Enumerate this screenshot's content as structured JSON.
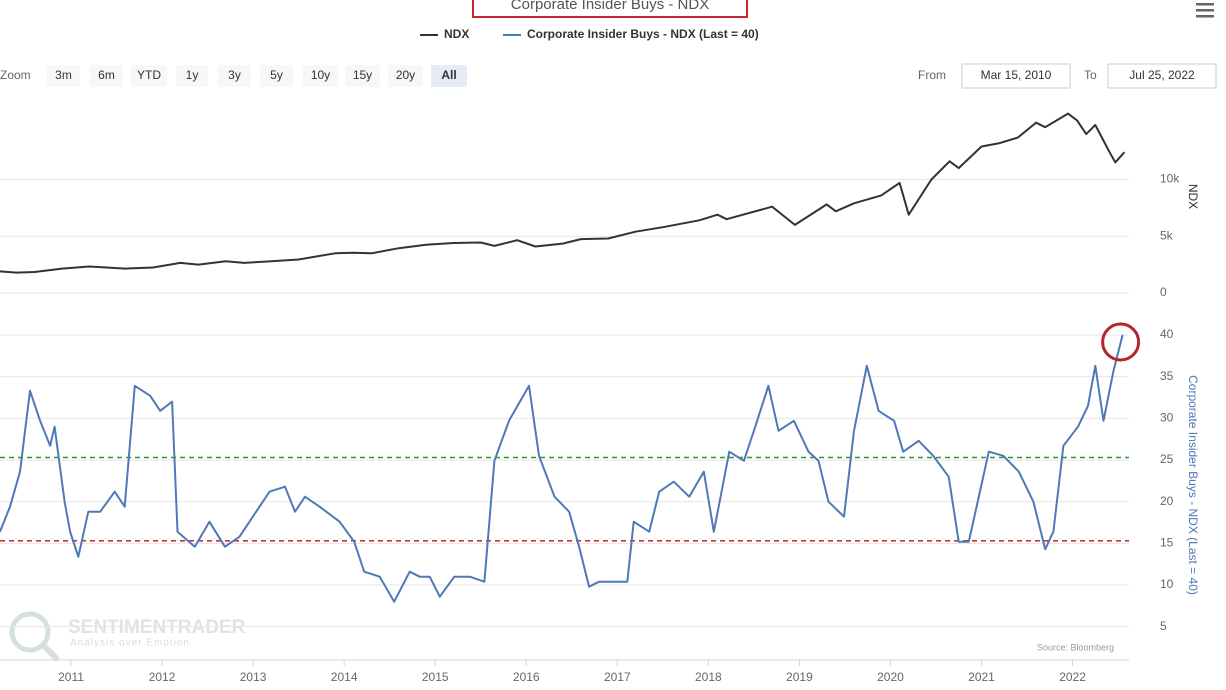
{
  "chart_data": [
    {
      "type": "line",
      "title": "Corporate Insider Buys - NDX",
      "series": [
        {
          "name": "NDX",
          "color": "#333333",
          "x": [
            2010.22,
            2010.4,
            2010.6,
            2010.9,
            2011.2,
            2011.6,
            2011.9,
            2012.2,
            2012.4,
            2012.7,
            2012.9,
            2013.2,
            2013.5,
            2013.9,
            2014.1,
            2014.3,
            2014.6,
            2014.9,
            2015.2,
            2015.5,
            2015.65,
            2015.9,
            2016.1,
            2016.4,
            2016.6,
            2016.9,
            2017.2,
            2017.5,
            2017.9,
            2018.1,
            2018.2,
            2018.7,
            2018.95,
            2019.3,
            2019.4,
            2019.6,
            2019.9,
            2020.1,
            2020.2,
            2020.45,
            2020.65,
            2020.75,
            2021.0,
            2021.2,
            2021.4,
            2021.6,
            2021.7,
            2021.95,
            2022.05,
            2022.15,
            2022.25,
            2022.4,
            2022.47,
            2022.57
          ],
          "values": [
            1900,
            1800,
            1850,
            2150,
            2330,
            2150,
            2250,
            2650,
            2500,
            2800,
            2650,
            2800,
            2950,
            3500,
            3550,
            3500,
            3950,
            4250,
            4400,
            4450,
            4150,
            4650,
            4100,
            4350,
            4750,
            4800,
            5400,
            5800,
            6400,
            6900,
            6500,
            7600,
            6000,
            7800,
            7200,
            7900,
            8600,
            9700,
            6900,
            10000,
            11600,
            11000,
            12900,
            13200,
            13700,
            15000,
            14600,
            15800,
            15200,
            14000,
            14800,
            12500,
            11500,
            12400
          ]
        }
      ],
      "y_label": "NDX",
      "ylim": [
        0,
        17000
      ],
      "yticks": [
        0,
        {
          "value": 5000,
          "label": "5k"
        },
        {
          "value": 10000,
          "label": "10k"
        }
      ],
      "xlim": [
        2010.22,
        2022.62
      ],
      "grid": true
    },
    {
      "type": "line",
      "series": [
        {
          "name": "Corporate Insider Buys - NDX (Last = 40)",
          "color": "#4f78b8",
          "x": [
            2010.22,
            2010.33,
            2010.44,
            2010.55,
            2010.66,
            2010.77,
            2010.82,
            2010.93,
            2010.99,
            2011.08,
            2011.19,
            2011.32,
            2011.48,
            2011.59,
            2011.7,
            2011.87,
            2011.98,
            2012.11,
            2012.17,
            2012.36,
            2012.52,
            2012.69,
            2012.85,
            2013.18,
            2013.35,
            2013.46,
            2013.57,
            2013.73,
            2013.95,
            2014.11,
            2014.22,
            2014.39,
            2014.55,
            2014.72,
            2014.83,
            2014.94,
            2015.05,
            2015.21,
            2015.38,
            2015.54,
            2015.65,
            2015.81,
            2016.03,
            2016.14,
            2016.31,
            2016.47,
            2016.58,
            2016.69,
            2016.8,
            2017.11,
            2017.18,
            2017.35,
            2017.46,
            2017.62,
            2017.79,
            2017.95,
            2018.06,
            2018.23,
            2018.39,
            2018.5,
            2018.66,
            2018.77,
            2018.94,
            2019.1,
            2019.21,
            2019.32,
            2019.49,
            2019.6,
            2019.74,
            2019.87,
            2020.04,
            2020.14,
            2020.31,
            2020.47,
            2020.64,
            2020.75,
            2020.86,
            2021.08,
            2021.24,
            2021.41,
            2021.57,
            2021.7,
            2021.79,
            2021.9,
            2022.06,
            2022.17,
            2022.25,
            2022.34,
            2022.45,
            2022.55
          ],
          "values": [
            16.4,
            19.4,
            23.6,
            33.3,
            29.7,
            26.7,
            29,
            20,
            16.4,
            13.4,
            18.8,
            18.8,
            21.2,
            19.4,
            33.9,
            32.7,
            30.9,
            32,
            16.4,
            14.6,
            17.6,
            14.6,
            15.8,
            21.2,
            21.8,
            18.8,
            20.6,
            19.4,
            17.6,
            15.2,
            11.6,
            11,
            8,
            11.6,
            11,
            11,
            8.6,
            11,
            11,
            10.4,
            24.9,
            29.7,
            33.9,
            25.5,
            20.6,
            18.8,
            14.6,
            9.8,
            10.4,
            10.4,
            17.6,
            16.4,
            21.2,
            22.4,
            20.6,
            23.6,
            16.4,
            26,
            24.9,
            28.5,
            33.9,
            28.5,
            29.7,
            26,
            24.9,
            20,
            18.2,
            28.5,
            36.3,
            30.9,
            29.7,
            26,
            27.3,
            25.5,
            23,
            15.2,
            15.2,
            26,
            25.5,
            23.6,
            20,
            14.3,
            16.4,
            26.7,
            29,
            31.5,
            36.3,
            29.7,
            35.7,
            40
          ]
        }
      ],
      "y_label": "Corporate Insider Buys - NDX (Last = 40)",
      "ylim": [
        1,
        43
      ],
      "yticks": [
        5,
        10,
        15,
        20,
        25,
        30,
        35,
        40
      ],
      "xlim": [
        2010.22,
        2022.62
      ],
      "xticks": [
        2011,
        2012,
        2013,
        2014,
        2015,
        2016,
        2017,
        2018,
        2019,
        2020,
        2021,
        2022
      ],
      "hlines": [
        {
          "value": 25.3,
          "color": "#2e9a2e"
        },
        {
          "value": 15.3,
          "color": "#c83232"
        }
      ],
      "grid": true
    }
  ],
  "ui": {
    "zoom_label": "Zoom",
    "zoom_buttons": [
      "3m",
      "6m",
      "YTD",
      "1y",
      "3y",
      "5y",
      "10y",
      "15y",
      "20y",
      "All"
    ],
    "zoom_selected": 9,
    "from_label": "From",
    "from": "Mar 15, 2010",
    "to_label": "To",
    "to": "Jul 25, 2022",
    "watermark": "SENTIMENTRADER",
    "watermark_sub": "Analysis over Emotion",
    "source": "Source: Bloomberg"
  }
}
